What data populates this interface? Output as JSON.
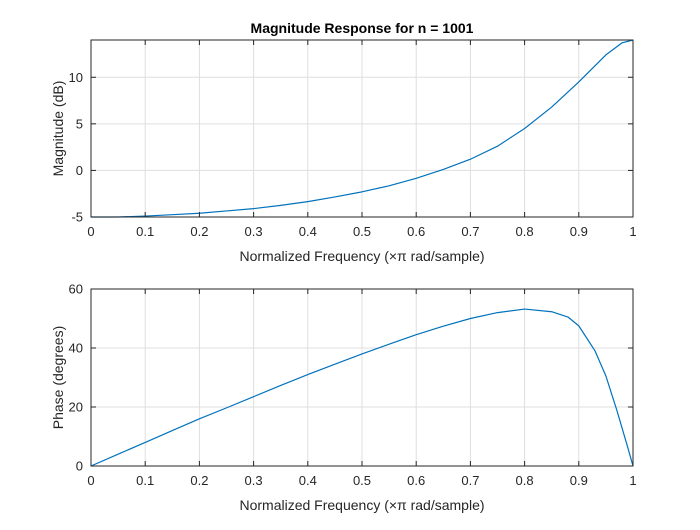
{
  "chart_data": [
    {
      "type": "line",
      "title": "Magnitude Response for n = 1001",
      "xlabel": "Normalized Frequency  (×π rad/sample)",
      "ylabel": "Magnitude (dB)",
      "xlim": [
        0,
        1
      ],
      "ylim": [
        -5,
        14
      ],
      "grid": true,
      "line_color": "#0072BD",
      "xticks": [
        0,
        0.1,
        0.2,
        0.3,
        0.4,
        0.5,
        0.6,
        0.7,
        0.8,
        0.9,
        1
      ],
      "xtick_labels": [
        "0",
        "0.1",
        "0.2",
        "0.3",
        "0.4",
        "0.5",
        "0.6",
        "0.7",
        "0.8",
        "0.9",
        "1"
      ],
      "yticks": [
        -5,
        0,
        5,
        10
      ],
      "ytick_labels": [
        "-5",
        "0",
        "5",
        "10"
      ],
      "series": [
        {
          "x": [
            0,
            0.05,
            0.1,
            0.15,
            0.2,
            0.25,
            0.3,
            0.35,
            0.4,
            0.45,
            0.5,
            0.55,
            0.6,
            0.65,
            0.7,
            0.75,
            0.8,
            0.85,
            0.9,
            0.95,
            0.98,
            1.0
          ],
          "values": [
            -5.0,
            -5.0,
            -4.9,
            -4.75,
            -4.6,
            -4.35,
            -4.1,
            -3.75,
            -3.35,
            -2.85,
            -2.3,
            -1.65,
            -0.85,
            0.1,
            1.2,
            2.6,
            4.5,
            6.8,
            9.5,
            12.4,
            13.7,
            14.0
          ]
        }
      ]
    },
    {
      "type": "line",
      "title": "",
      "xlabel": "Normalized Frequency  (×π rad/sample)",
      "ylabel": "Phase (degrees)",
      "xlim": [
        0,
        1
      ],
      "ylim": [
        0,
        60
      ],
      "grid": true,
      "line_color": "#0072BD",
      "xticks": [
        0,
        0.1,
        0.2,
        0.3,
        0.4,
        0.5,
        0.6,
        0.7,
        0.8,
        0.9,
        1
      ],
      "xtick_labels": [
        "0",
        "0.1",
        "0.2",
        "0.3",
        "0.4",
        "0.5",
        "0.6",
        "0.7",
        "0.8",
        "0.9",
        "1"
      ],
      "yticks": [
        0,
        20,
        40,
        60
      ],
      "ytick_labels": [
        "0",
        "20",
        "40",
        "60"
      ],
      "series": [
        {
          "x": [
            0,
            0.05,
            0.1,
            0.15,
            0.2,
            0.25,
            0.3,
            0.35,
            0.4,
            0.45,
            0.5,
            0.55,
            0.6,
            0.65,
            0.7,
            0.75,
            0.8,
            0.85,
            0.88,
            0.9,
            0.93,
            0.95,
            0.97,
            0.99,
            1.0
          ],
          "values": [
            0,
            4.0,
            8.0,
            12.0,
            16.0,
            19.7,
            23.5,
            27.3,
            31.0,
            34.5,
            38.0,
            41.3,
            44.5,
            47.4,
            50.0,
            52.0,
            53.2,
            52.3,
            50.5,
            47.5,
            39.0,
            30.5,
            19.0,
            6.5,
            0
          ]
        }
      ]
    }
  ]
}
